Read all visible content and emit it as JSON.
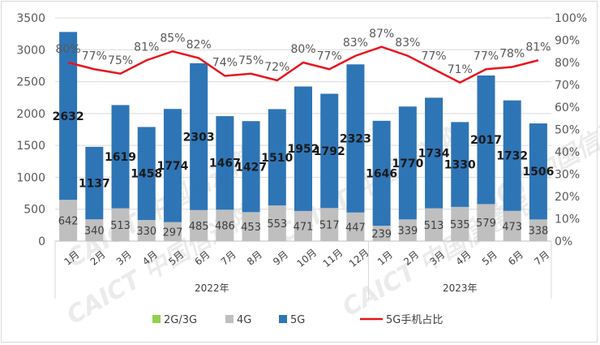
{
  "chart_data": {
    "type": "bar",
    "stacked": true,
    "title": "",
    "categories": [
      "1月",
      "2月",
      "3月",
      "4月",
      "5月",
      "6月",
      "7月",
      "8月",
      "9月",
      "10月",
      "11月",
      "12月",
      "1月",
      "2月",
      "3月",
      "4月",
      "5月",
      "6月",
      "7月"
    ],
    "groups": [
      {
        "label": "2022年",
        "count": 12
      },
      {
        "label": "2023年",
        "count": 7
      }
    ],
    "series": [
      {
        "name": "2G/3G",
        "color": "#92d050",
        "values": [
          5,
          1,
          1,
          1,
          1,
          1,
          6,
          1,
          6,
          1,
          1,
          1,
          1,
          1,
          1,
          1,
          1,
          1,
          1
        ]
      },
      {
        "name": "4G",
        "color": "#bfbfbf",
        "values": [
          642,
          340,
          513,
          330,
          297,
          485,
          486,
          453,
          553,
          471,
          517,
          447,
          239,
          339,
          513,
          535,
          579,
          473,
          338
        ]
      },
      {
        "name": "5G",
        "color": "#2e75b6",
        "values": [
          2632,
          1137,
          1619,
          1458,
          1774,
          2303,
          1467,
          1427,
          1510,
          1952,
          1792,
          2323,
          1646,
          1770,
          1734,
          1330,
          2017,
          1732,
          1506
        ]
      }
    ],
    "line_series": {
      "name": "5G手机占比",
      "color": "#e8141e",
      "axis": "right",
      "values": [
        80,
        77,
        75,
        81,
        85,
        82,
        74,
        75,
        72,
        80,
        77,
        83,
        87,
        83,
        77,
        71,
        77,
        78,
        81
      ]
    },
    "ylim": [
      0,
      3500
    ],
    "yticks": [
      0,
      500,
      1000,
      1500,
      2000,
      2500,
      3000,
      3500
    ],
    "y2lim": [
      0,
      100
    ],
    "y2ticks": [
      "0%",
      "10%",
      "20%",
      "30%",
      "40%",
      "50%",
      "60%",
      "70%",
      "80%",
      "90%",
      "100%"
    ],
    "grid": true,
    "legend": "bottom",
    "watermark": "CAICT 中国信通院"
  }
}
